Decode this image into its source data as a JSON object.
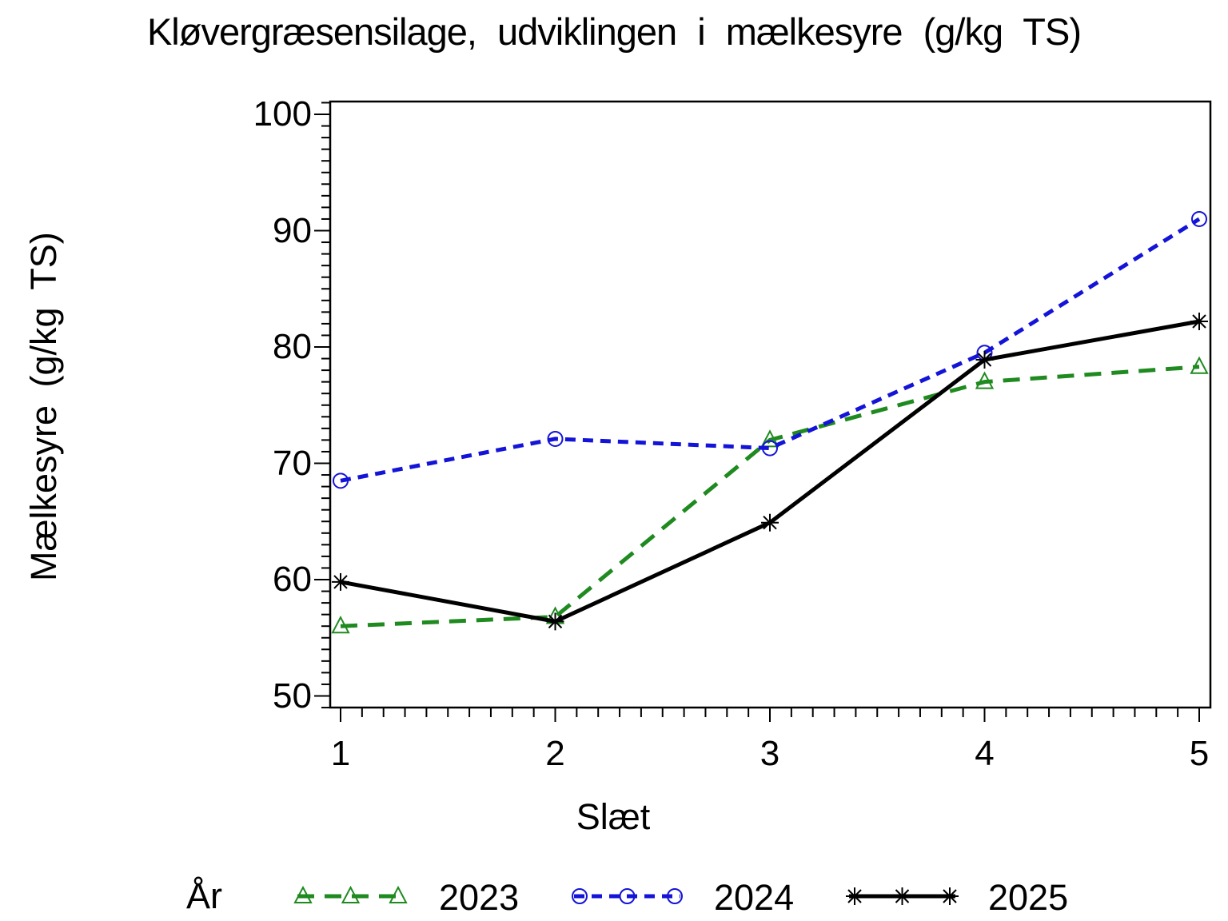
{
  "chart_data": {
    "type": "line",
    "title": "Kløvergræsensilage, udviklingen i mælkesyre (g/kg TS)",
    "xlabel": "Slæt",
    "ylabel": "Mælkesyre (g/kg TS)",
    "legend_title": "År",
    "legend_position": "bottom",
    "grid": false,
    "x": [
      1,
      2,
      3,
      4,
      5
    ],
    "xtick_labels": [
      "1",
      "2",
      "3",
      "4",
      "5"
    ],
    "xlim": [
      0.95,
      5.05
    ],
    "ylim": [
      48.5,
      101.5
    ],
    "yticks_major": [
      50,
      60,
      70,
      80,
      90,
      100
    ],
    "ytick_labels": [
      "50",
      "60",
      "70",
      "80",
      "90",
      "100"
    ],
    "y_minor_step": 1,
    "x_minor_step": 0.1,
    "series": [
      {
        "name": "2023",
        "values": [
          56.0,
          56.8,
          72.0,
          77.0,
          78.3
        ],
        "color": "#1f8a1f",
        "line": "dashed",
        "dash": "21 13",
        "marker": "triangle"
      },
      {
        "name": "2024",
        "values": [
          68.5,
          72.1,
          71.3,
          79.5,
          91.0
        ],
        "color": "#1414d8",
        "line": "dashed",
        "dash": "13 9",
        "marker": "circle"
      },
      {
        "name": "2025",
        "values": [
          59.8,
          56.4,
          64.9,
          78.9,
          82.2
        ],
        "color": "#000000",
        "line": "solid",
        "dash": "",
        "marker": "star"
      }
    ]
  }
}
